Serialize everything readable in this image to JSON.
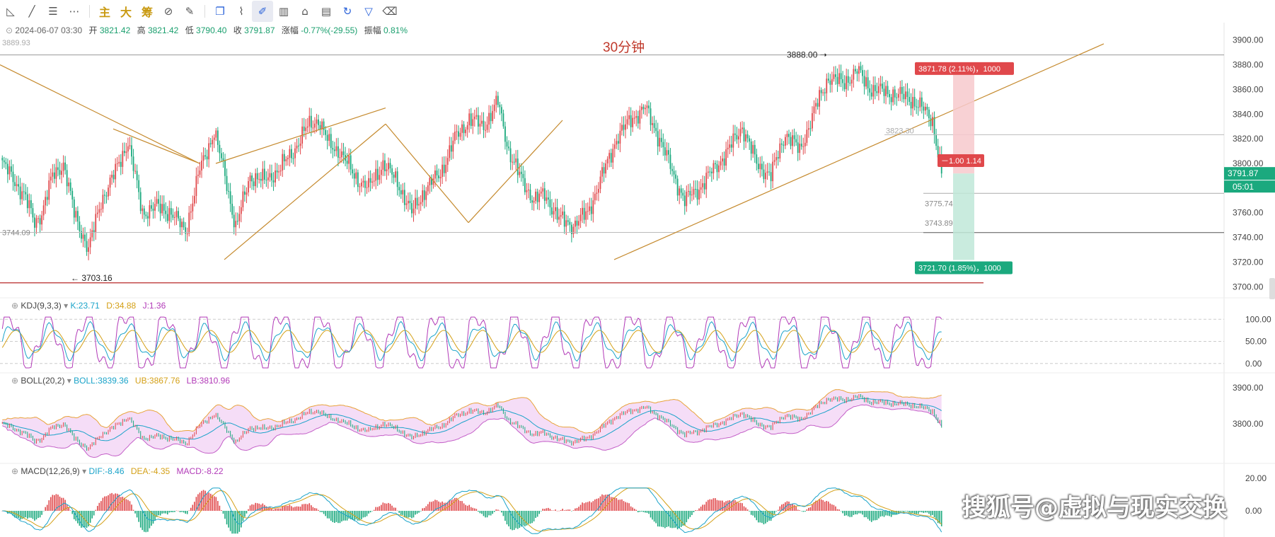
{
  "toolbar": {
    "items": [
      "trend-line",
      "ray",
      "parallel-channel",
      "more",
      "主",
      "大",
      "筹",
      "indicator",
      "eraser-brush",
      "measure",
      "ruler",
      "drawing-pen",
      "candles",
      "lock",
      "table",
      "magnet",
      "filter",
      "trash"
    ]
  },
  "header": {
    "datetime": "2024-06-07 03:30",
    "open_label": "开",
    "open": "3821.42",
    "high_label": "高",
    "high": "3821.42",
    "low_label": "低",
    "low": "3790.40",
    "close_label": "收",
    "close": "3791.87",
    "chg_label": "涨幅",
    "chg": "-0.77%(-29.55)",
    "amp_label": "振幅",
    "amp": "0.81%",
    "top_left_price": "3889.93"
  },
  "timeframe_title": "30分钟",
  "price_axis": {
    "ticks": [
      "3900.00",
      "3880.00",
      "3860.00",
      "3840.00",
      "3820.00",
      "3800.00",
      "3780.00",
      "3760.00",
      "3740.00",
      "3720.00",
      "3700.00"
    ],
    "current_price": "3791.87",
    "countdown": "05:01",
    "colors": {
      "up": "#e0484b",
      "down": "#1ba97e",
      "trend": "#c58a2e",
      "boll_fill": "#f3d4f5"
    }
  },
  "annotations": {
    "high_marker": "3888.00",
    "low_marker": "3703.16",
    "left_level": "3744.09",
    "level_3823": "3823.30",
    "level_3775": "3775.74",
    "level_3743": "3743.89",
    "target_profit": "3871.78 (2.11%)，1000",
    "stop_label": "－1.00 1.14",
    "target_loss": "3721.70 (1.85%)，1000"
  },
  "kdj": {
    "name": "KDJ(9,3,3)",
    "k": "K:23.71",
    "d": "D:34.88",
    "j": "J:1.36",
    "ticks": [
      "100.00",
      "50.00",
      "0.00"
    ]
  },
  "boll": {
    "name": "BOLL(20,2)",
    "mid": "BOLL:3839.36",
    "ub": "UB:3867.76",
    "lb": "LB:3810.96",
    "ticks": [
      "3900.00",
      "3800.00"
    ]
  },
  "macd": {
    "name": "MACD(12,26,9)",
    "dif": "DIF:-8.46",
    "dea": "DEA:-4.35",
    "macd": "MACD:-8.22",
    "ticks": [
      "20.00",
      "0.00"
    ]
  },
  "watermark": "搜狐号@虚拟与现实交换",
  "chart_data": {
    "type": "candlestick",
    "timeframe": "30分钟",
    "ylim": [
      3695,
      3905
    ],
    "close_anchors": [
      [
        0,
        3800
      ],
      [
        12,
        3775
      ],
      [
        18,
        3752
      ],
      [
        22,
        3760
      ],
      [
        28,
        3790
      ],
      [
        34,
        3800
      ],
      [
        40,
        3760
      ],
      [
        48,
        3730
      ],
      [
        55,
        3770
      ],
      [
        62,
        3790
      ],
      [
        70,
        3818
      ],
      [
        78,
        3760
      ],
      [
        86,
        3765
      ],
      [
        94,
        3760
      ],
      [
        102,
        3745
      ],
      [
        110,
        3795
      ],
      [
        118,
        3826
      ],
      [
        124,
        3790
      ],
      [
        130,
        3748
      ],
      [
        138,
        3790
      ],
      [
        146,
        3786
      ],
      [
        154,
        3795
      ],
      [
        162,
        3810
      ],
      [
        170,
        3830
      ],
      [
        176,
        3836
      ],
      [
        182,
        3815
      ],
      [
        188,
        3810
      ],
      [
        196,
        3790
      ],
      [
        204,
        3780
      ],
      [
        212,
        3800
      ],
      [
        220,
        3785
      ],
      [
        228,
        3760
      ],
      [
        236,
        3780
      ],
      [
        244,
        3792
      ],
      [
        252,
        3820
      ],
      [
        260,
        3836
      ],
      [
        268,
        3830
      ],
      [
        276,
        3850
      ],
      [
        282,
        3810
      ],
      [
        288,
        3790
      ],
      [
        296,
        3770
      ],
      [
        302,
        3775
      ],
      [
        310,
        3755
      ],
      [
        318,
        3750
      ],
      [
        326,
        3760
      ],
      [
        334,
        3790
      ],
      [
        342,
        3820
      ],
      [
        350,
        3836
      ],
      [
        358,
        3845
      ],
      [
        366,
        3820
      ],
      [
        374,
        3790
      ],
      [
        380,
        3770
      ],
      [
        388,
        3780
      ],
      [
        396,
        3795
      ],
      [
        404,
        3810
      ],
      [
        412,
        3830
      ],
      [
        420,
        3800
      ],
      [
        428,
        3790
      ],
      [
        436,
        3825
      ],
      [
        444,
        3810
      ],
      [
        452,
        3842
      ],
      [
        460,
        3870
      ],
      [
        468,
        3865
      ],
      [
        476,
        3875
      ],
      [
        484,
        3860
      ],
      [
        492,
        3858
      ],
      [
        500,
        3855
      ],
      [
        506,
        3852
      ],
      [
        512,
        3845
      ],
      [
        518,
        3835
      ],
      [
        523,
        3792
      ]
    ]
  }
}
